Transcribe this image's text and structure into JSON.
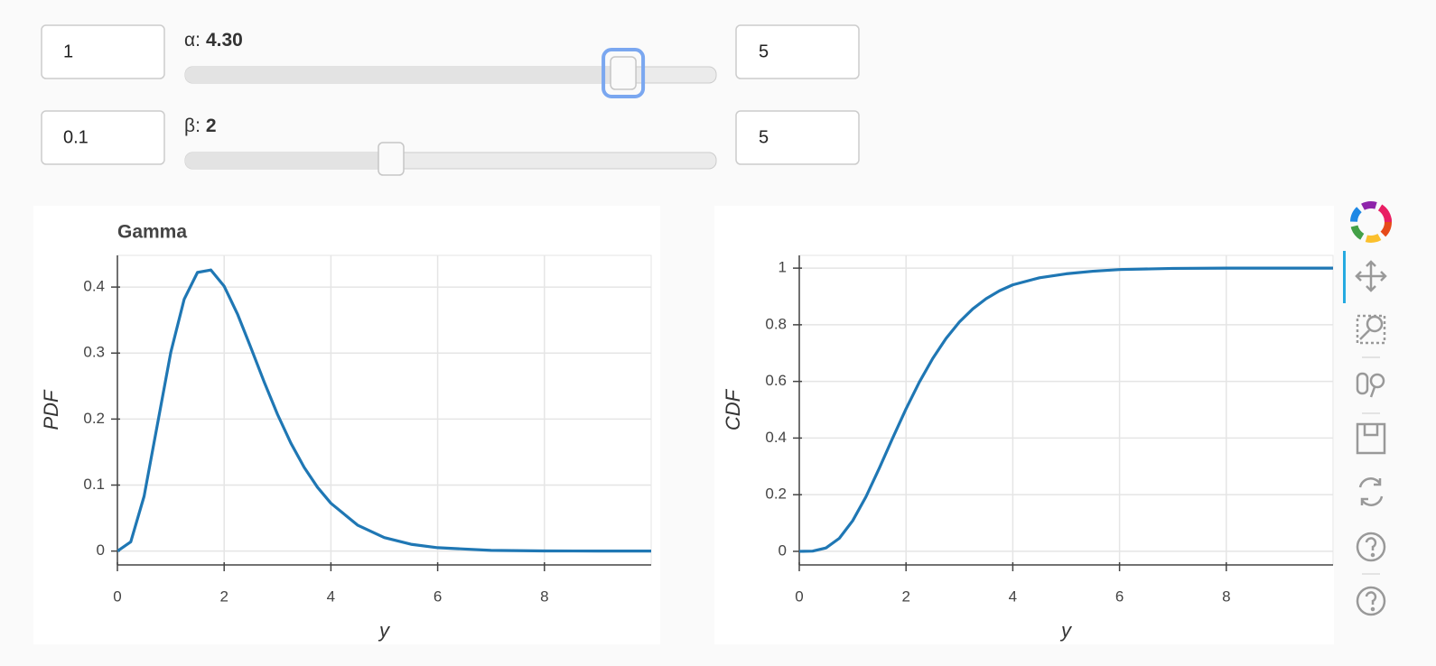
{
  "controls": [
    {
      "start": 1,
      "end": 5,
      "label": "α:",
      "value": 4.3,
      "value_label": "4.30"
    },
    {
      "start": 0.1,
      "end": 5,
      "label": "β:",
      "value": 2,
      "value_label": "2"
    }
  ],
  "chart_data": [
    {
      "type": "line",
      "title": "Gamma",
      "xlabel": "y",
      "ylabel": "PDF",
      "color": "#1f77b4",
      "grid": true,
      "x": [
        0,
        0.25,
        0.5,
        0.75,
        1,
        1.25,
        1.5,
        1.75,
        2,
        2.25,
        2.5,
        2.75,
        3,
        3.25,
        3.5,
        3.75,
        4,
        4.5,
        5,
        5.5,
        6,
        7,
        8,
        9,
        10
      ],
      "values": [
        0,
        0.0139,
        0.0831,
        0.1921,
        0.3011,
        0.3814,
        0.4222,
        0.4259,
        0.4013,
        0.3591,
        0.3083,
        0.2561,
        0.207,
        0.1635,
        0.1267,
        0.0965,
        0.0724,
        0.0393,
        0.0205,
        0.0103,
        0.0051,
        0.0011,
        0.0002,
        0,
        0
      ],
      "xlim": [
        0,
        10
      ],
      "ylim": [
        -0.021,
        0.448
      ],
      "xticks": [
        0,
        2,
        4,
        6,
        8
      ],
      "yticks": [
        0,
        0.1,
        0.2,
        0.3,
        0.4
      ]
    },
    {
      "type": "line",
      "xlabel": "y",
      "ylabel": "CDF",
      "color": "#1f77b4",
      "grid": true,
      "x": [
        0,
        0.25,
        0.5,
        0.75,
        1,
        1.25,
        1.5,
        1.75,
        2,
        2.25,
        2.5,
        2.75,
        3,
        3.25,
        3.5,
        3.75,
        4,
        4.5,
        5,
        5.5,
        6,
        7,
        8,
        9,
        10
      ],
      "values": [
        0,
        0.0008,
        0.012,
        0.046,
        0.108,
        0.193,
        0.294,
        0.4,
        0.503,
        0.598,
        0.681,
        0.752,
        0.81,
        0.856,
        0.892,
        0.92,
        0.941,
        0.966,
        0.98,
        0.989,
        0.995,
        0.999,
        1,
        1,
        1
      ],
      "xlim": [
        0,
        10
      ],
      "ylim": [
        -0.048,
        1.045
      ],
      "xticks": [
        0,
        2,
        4,
        6,
        8
      ],
      "yticks": [
        0,
        0.2,
        0.4,
        0.6,
        0.8,
        1
      ]
    }
  ]
}
